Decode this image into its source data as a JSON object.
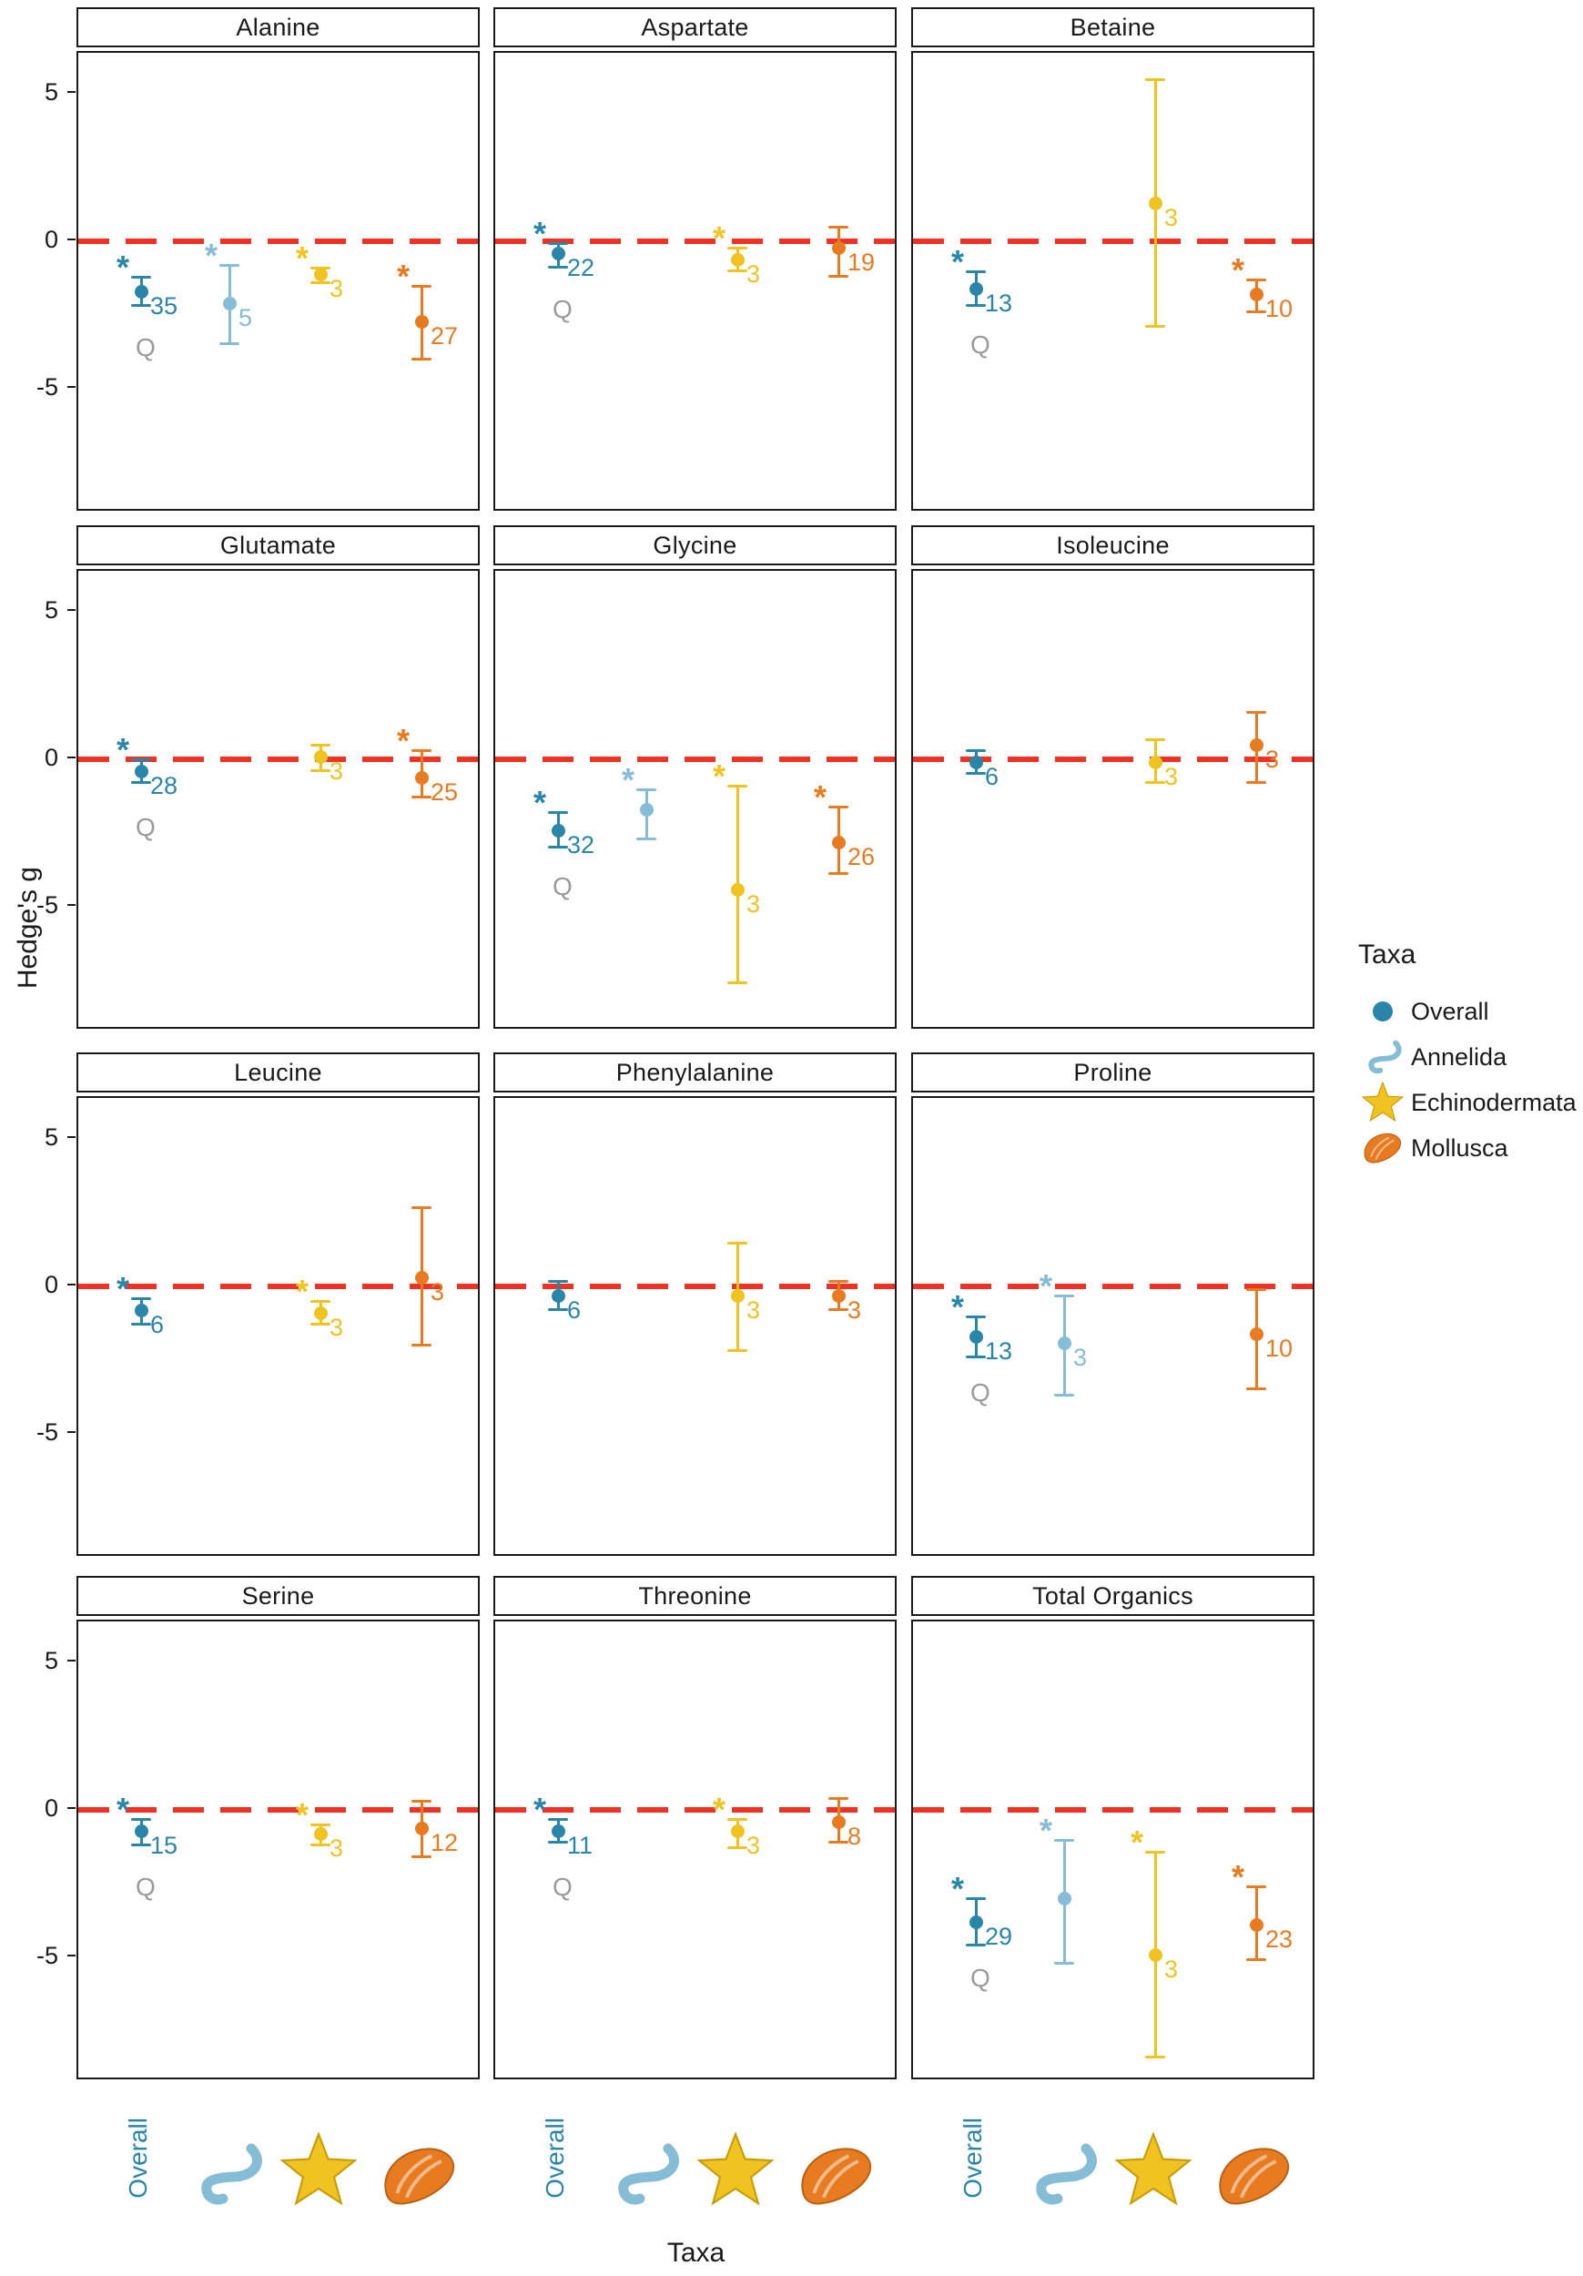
{
  "figure": {
    "ylabel": "Hedge's g",
    "xlabel": "Taxa"
  },
  "symbols": {
    "significance": "*",
    "heterogeneity": "Q"
  },
  "legend": {
    "title": "Taxa",
    "items": [
      {
        "label": "Overall",
        "taxon": "Overall",
        "icon": "circle-icon"
      },
      {
        "label": "Annelida",
        "taxon": "Annelida",
        "icon": "worm-icon"
      },
      {
        "label": "Echinodermata",
        "taxon": "Echinodermata",
        "icon": "starfish-icon"
      },
      {
        "label": "Mollusca",
        "taxon": "Mollusca",
        "icon": "mussel-icon"
      }
    ]
  },
  "x_axis": {
    "ticks": [
      {
        "label": "Overall",
        "icon": "text"
      },
      {
        "label": "Annelida",
        "icon": "worm-icon"
      },
      {
        "label": "Echinodermata",
        "icon": "starfish-icon"
      },
      {
        "label": "Mollusca",
        "icon": "mussel-icon"
      }
    ]
  },
  "colors": {
    "Overall": "#2a86a8",
    "Annelida": "#85bdd6",
    "Echinodermata": "#f0c320",
    "Mollusca": "#e87a20",
    "zero_line": "#ee3224",
    "q_label": "#9b9b9b",
    "panel_border": "#1a1a1a",
    "text": "#1a1a1a"
  },
  "chart_data": {
    "type": "scatter",
    "subtype": "faceted point-range (forest) plot with error bars",
    "ylabel": "Hedge's g",
    "xlabel": "Taxa",
    "yticks": [
      5,
      0,
      -5
    ],
    "ylim": [
      -9.2,
      6.4
    ],
    "zero_line": 0,
    "grid": false,
    "legend_position": "right",
    "taxa": [
      "Overall",
      "Annelida",
      "Echinodermata",
      "Mollusca"
    ],
    "panels": [
      {
        "title": "Alanine",
        "points": [
          {
            "taxon": "Overall",
            "y": -1.7,
            "ci_low": -2.2,
            "ci_high": -1.2,
            "n": 35,
            "sig": true,
            "q": true
          },
          {
            "taxon": "Annelida",
            "y": -2.1,
            "ci_low": -3.5,
            "ci_high": -0.8,
            "n": 5,
            "sig": true,
            "q": false
          },
          {
            "taxon": "Echinodermata",
            "y": -1.1,
            "ci_low": -1.4,
            "ci_high": -0.9,
            "n": 3,
            "sig": true,
            "q": false
          },
          {
            "taxon": "Mollusca",
            "y": -2.7,
            "ci_low": -4.0,
            "ci_high": -1.5,
            "n": 27,
            "sig": true,
            "q": false
          }
        ]
      },
      {
        "title": "Aspartate",
        "points": [
          {
            "taxon": "Overall",
            "y": -0.4,
            "ci_low": -0.9,
            "ci_high": -0.05,
            "n": 22,
            "sig": true,
            "q": true
          },
          {
            "taxon": "Echinodermata",
            "y": -0.6,
            "ci_low": -1.0,
            "ci_high": -0.2,
            "n": 3,
            "sig": true,
            "q": false
          },
          {
            "taxon": "Mollusca",
            "y": -0.2,
            "ci_low": -1.2,
            "ci_high": 0.5,
            "n": 19,
            "sig": false,
            "q": false
          }
        ]
      },
      {
        "title": "Betaine",
        "points": [
          {
            "taxon": "Overall",
            "y": -1.6,
            "ci_low": -2.2,
            "ci_high": -1.0,
            "n": 13,
            "sig": true,
            "q": true
          },
          {
            "taxon": "Echinodermata",
            "y": 1.3,
            "ci_low": -2.9,
            "ci_high": 5.5,
            "n": 3,
            "sig": false,
            "q": false
          },
          {
            "taxon": "Mollusca",
            "y": -1.8,
            "ci_low": -2.4,
            "ci_high": -1.3,
            "n": 10,
            "sig": true,
            "q": false
          }
        ]
      },
      {
        "title": "Glutamate",
        "points": [
          {
            "taxon": "Overall",
            "y": -0.4,
            "ci_low": -0.8,
            "ci_high": 0.0,
            "n": 28,
            "sig": true,
            "q": true
          },
          {
            "taxon": "Echinodermata",
            "y": 0.1,
            "ci_low": -0.4,
            "ci_high": 0.5,
            "n": 3,
            "sig": false,
            "q": false
          },
          {
            "taxon": "Mollusca",
            "y": -0.6,
            "ci_low": -1.3,
            "ci_high": 0.3,
            "n": 25,
            "sig": true,
            "q": false
          }
        ]
      },
      {
        "title": "Glycine",
        "points": [
          {
            "taxon": "Overall",
            "y": -2.4,
            "ci_low": -3.0,
            "ci_high": -1.8,
            "n": 32,
            "sig": true,
            "q": true
          },
          {
            "taxon": "Annelida",
            "y": -1.7,
            "ci_low": -2.7,
            "ci_high": -1.0,
            "n": null,
            "sig": true,
            "q": false
          },
          {
            "taxon": "Echinodermata",
            "y": -4.4,
            "ci_low": -7.6,
            "ci_high": -0.9,
            "n": 3,
            "sig": true,
            "q": false
          },
          {
            "taxon": "Mollusca",
            "y": -2.8,
            "ci_low": -3.9,
            "ci_high": -1.6,
            "n": 26,
            "sig": true,
            "q": false
          }
        ]
      },
      {
        "title": "Isoleucine",
        "points": [
          {
            "taxon": "Overall",
            "y": -0.1,
            "ci_low": -0.5,
            "ci_high": 0.3,
            "n": 6,
            "sig": false,
            "q": false
          },
          {
            "taxon": "Echinodermata",
            "y": -0.1,
            "ci_low": -0.8,
            "ci_high": 0.7,
            "n": 3,
            "sig": false,
            "q": false
          },
          {
            "taxon": "Mollusca",
            "y": 0.5,
            "ci_low": -0.8,
            "ci_high": 1.6,
            "n": 3,
            "sig": false,
            "q": false
          }
        ]
      },
      {
        "title": "Leucine",
        "points": [
          {
            "taxon": "Overall",
            "y": -0.8,
            "ci_low": -1.3,
            "ci_high": -0.4,
            "n": 6,
            "sig": true,
            "q": false
          },
          {
            "taxon": "Echinodermata",
            "y": -0.9,
            "ci_low": -1.3,
            "ci_high": -0.5,
            "n": 3,
            "sig": true,
            "q": false
          },
          {
            "taxon": "Mollusca",
            "y": 0.3,
            "ci_low": -2.0,
            "ci_high": 2.7,
            "n": 3,
            "sig": false,
            "q": false
          }
        ]
      },
      {
        "title": "Phenylalanine",
        "points": [
          {
            "taxon": "Overall",
            "y": -0.3,
            "ci_low": -0.8,
            "ci_high": 0.2,
            "n": 6,
            "sig": false,
            "q": false
          },
          {
            "taxon": "Echinodermata",
            "y": -0.3,
            "ci_low": -2.2,
            "ci_high": 1.5,
            "n": 3,
            "sig": false,
            "q": false
          },
          {
            "taxon": "Mollusca",
            "y": -0.3,
            "ci_low": -0.8,
            "ci_high": 0.2,
            "n": 3,
            "sig": false,
            "q": false
          }
        ]
      },
      {
        "title": "Proline",
        "points": [
          {
            "taxon": "Overall",
            "y": -1.7,
            "ci_low": -2.4,
            "ci_high": -1.0,
            "n": 13,
            "sig": true,
            "q": true
          },
          {
            "taxon": "Annelida",
            "y": -1.9,
            "ci_low": -3.7,
            "ci_high": -0.3,
            "n": 3,
            "sig": true,
            "q": false
          },
          {
            "taxon": "Mollusca",
            "y": -1.6,
            "ci_low": -3.5,
            "ci_high": -0.1,
            "n": 10,
            "sig": false,
            "q": false
          }
        ]
      },
      {
        "title": "Serine",
        "points": [
          {
            "taxon": "Overall",
            "y": -0.7,
            "ci_low": -1.2,
            "ci_high": -0.3,
            "n": 15,
            "sig": true,
            "q": true
          },
          {
            "taxon": "Echinodermata",
            "y": -0.8,
            "ci_low": -1.2,
            "ci_high": -0.5,
            "n": 3,
            "sig": true,
            "q": false
          },
          {
            "taxon": "Mollusca",
            "y": -0.6,
            "ci_low": -1.6,
            "ci_high": 0.3,
            "n": 12,
            "sig": false,
            "q": false
          }
        ]
      },
      {
        "title": "Threonine",
        "points": [
          {
            "taxon": "Overall",
            "y": -0.7,
            "ci_low": -1.1,
            "ci_high": -0.3,
            "n": 11,
            "sig": true,
            "q": true
          },
          {
            "taxon": "Echinodermata",
            "y": -0.7,
            "ci_low": -1.3,
            "ci_high": -0.3,
            "n": 3,
            "sig": true,
            "q": false
          },
          {
            "taxon": "Mollusca",
            "y": -0.4,
            "ci_low": -1.1,
            "ci_high": 0.4,
            "n": 8,
            "sig": false,
            "q": false
          }
        ]
      },
      {
        "title": "Total Organics",
        "points": [
          {
            "taxon": "Overall",
            "y": -3.8,
            "ci_low": -4.6,
            "ci_high": -3.0,
            "n": 29,
            "sig": true,
            "q": true
          },
          {
            "taxon": "Annelida",
            "y": -3.0,
            "ci_low": -5.2,
            "ci_high": -1.0,
            "n": null,
            "sig": true,
            "q": false
          },
          {
            "taxon": "Echinodermata",
            "y": -4.9,
            "ci_low": -8.4,
            "ci_high": -1.4,
            "n": 3,
            "sig": true,
            "q": false
          },
          {
            "taxon": "Mollusca",
            "y": -3.9,
            "ci_low": -5.1,
            "ci_high": -2.6,
            "n": 23,
            "sig": true,
            "q": false
          }
        ]
      }
    ]
  }
}
